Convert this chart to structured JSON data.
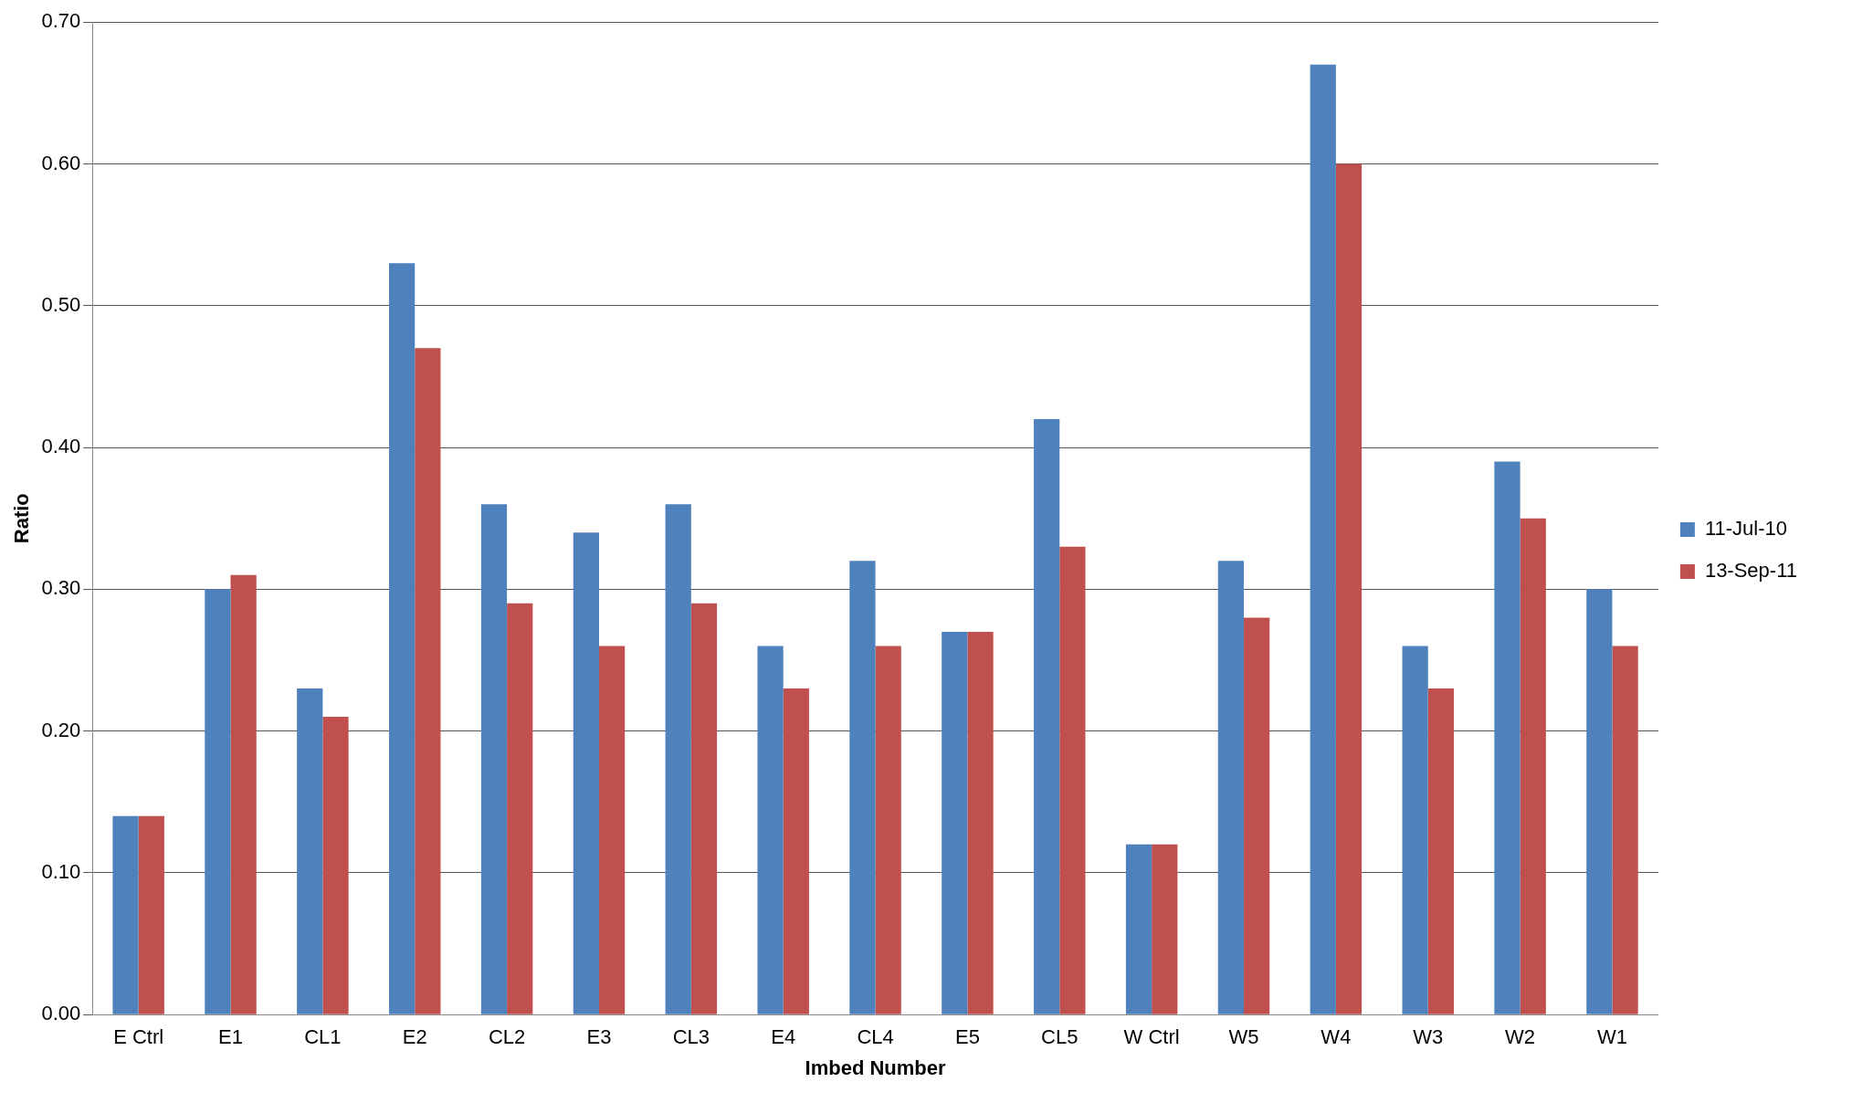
{
  "chart_data": {
    "type": "bar",
    "xlabel": "Imbed Number",
    "ylabel": "Ratio",
    "categories": [
      "E Ctrl",
      "E1",
      "CL1",
      "E2",
      "CL2",
      "E3",
      "CL3",
      "E4",
      "CL4",
      "E5",
      "CL5",
      "W Ctrl",
      "W5",
      "W4",
      "W3",
      "W2",
      "W1"
    ],
    "series": [
      {
        "name": "11-Jul-10",
        "color": "#4f81bd",
        "values": [
          0.14,
          0.3,
          0.23,
          0.53,
          0.36,
          0.34,
          0.36,
          0.26,
          0.32,
          0.27,
          0.42,
          0.12,
          0.32,
          0.67,
          0.26,
          0.39,
          0.3
        ]
      },
      {
        "name": "13-Sep-11",
        "color": "#c0504d",
        "values": [
          0.14,
          0.31,
          0.21,
          0.47,
          0.29,
          0.26,
          0.29,
          0.23,
          0.26,
          0.27,
          0.33,
          0.12,
          0.28,
          0.6,
          0.23,
          0.35,
          0.26
        ]
      }
    ],
    "ylim": [
      0,
      0.7
    ],
    "yticks": [
      {
        "value": 0,
        "label": "0.00"
      },
      {
        "value": 0.1,
        "label": "0.10"
      },
      {
        "value": 0.2,
        "label": "0.20"
      },
      {
        "value": 0.3,
        "label": "0.30"
      },
      {
        "value": 0.4,
        "label": "0.40"
      },
      {
        "value": 0.5,
        "label": "0.50"
      },
      {
        "value": 0.6,
        "label": "0.60"
      },
      {
        "value": 0.7,
        "label": "0.70"
      }
    ],
    "grid": "y",
    "legend": "right"
  }
}
